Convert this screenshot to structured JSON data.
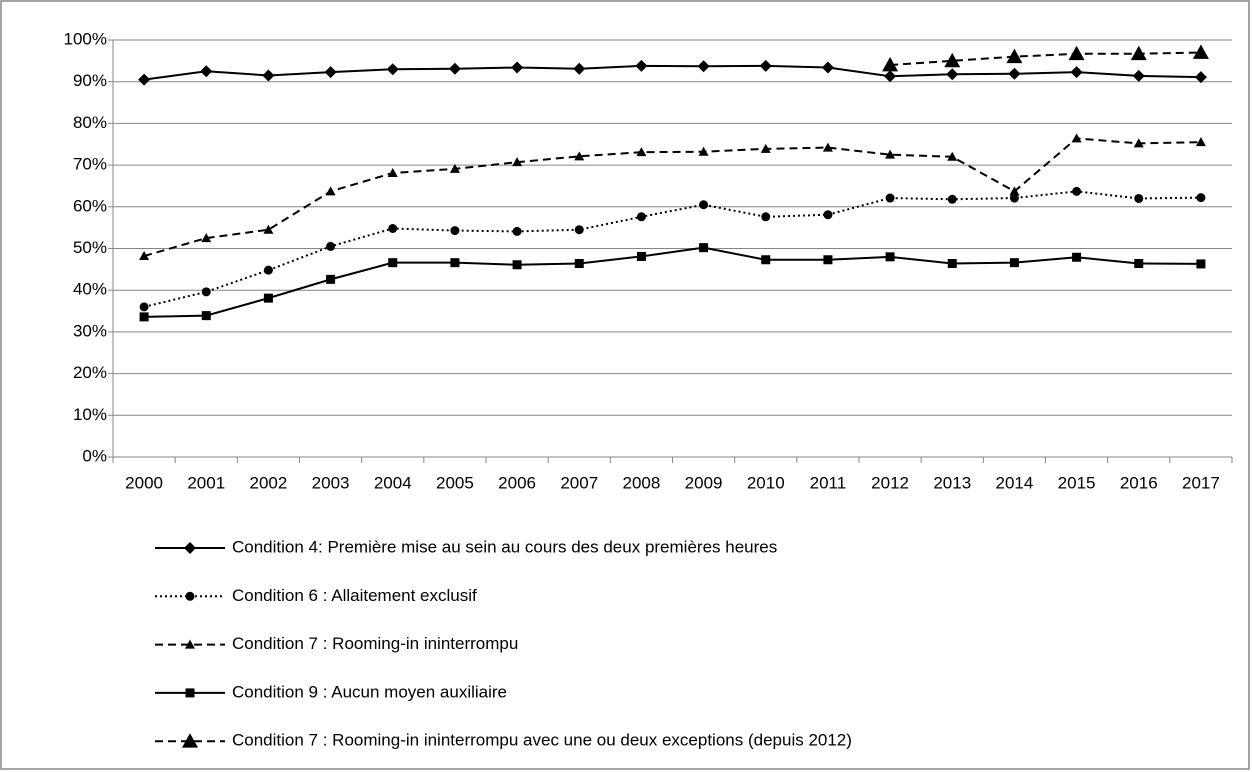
{
  "chart_data": {
    "type": "line",
    "categories": [
      "2000",
      "2001",
      "2002",
      "2003",
      "2004",
      "2005",
      "2006",
      "2007",
      "2008",
      "2009",
      "2010",
      "2011",
      "2012",
      "2013",
      "2014",
      "2015",
      "2016",
      "2017"
    ],
    "ylim": [
      0,
      100
    ],
    "yticks": [
      {
        "value": 0,
        "label": "0%"
      },
      {
        "value": 10,
        "label": "10%"
      },
      {
        "value": 20,
        "label": "20%"
      },
      {
        "value": 30,
        "label": "30%"
      },
      {
        "value": 40,
        "label": "40%"
      },
      {
        "value": 50,
        "label": "50%"
      },
      {
        "value": 60,
        "label": "60%"
      },
      {
        "value": 70,
        "label": "70%"
      },
      {
        "value": 80,
        "label": "80%"
      },
      {
        "value": 90,
        "label": "90%"
      },
      {
        "value": 100,
        "label": "100%"
      }
    ],
    "grid": true,
    "legend": "bottom",
    "series": [
      {
        "name": "Condition 4: Première mise au sein au cours des deux premières heures",
        "color": "#000000",
        "dash": "solid",
        "marker": "diamond",
        "marker_size": 6,
        "values": [
          90.5,
          92.5,
          91.5,
          92.3,
          93.0,
          93.1,
          93.4,
          93.1,
          93.8,
          93.7,
          93.8,
          93.4,
          91.3,
          91.8,
          91.9,
          92.3,
          91.4,
          91.1
        ]
      },
      {
        "name": "Condition 6 : Allaitement exclusif",
        "color": "#000000",
        "dash": "dotted",
        "marker": "circle",
        "marker_size": 4.5,
        "values": [
          36.0,
          39.6,
          44.8,
          50.5,
          54.8,
          54.3,
          54.1,
          54.5,
          57.6,
          60.5,
          57.6,
          58.1,
          62.1,
          61.8,
          62.1,
          63.7,
          62.0,
          62.2
        ]
      },
      {
        "name": "Condition 7 : Rooming-in ininterrompu",
        "color": "#000000",
        "dash": "dashed",
        "marker": "triangle",
        "marker_size": 5,
        "values": [
          48.2,
          52.5,
          54.5,
          63.7,
          68.1,
          69.1,
          70.7,
          72.1,
          73.1,
          73.2,
          73.9,
          74.2,
          72.5,
          72.0,
          63.7,
          76.4,
          75.2,
          75.5
        ]
      },
      {
        "name": "Condition 9 : Aucun moyen auxiliaire",
        "color": "#000000",
        "dash": "solid",
        "marker": "square",
        "marker_size": 4.5,
        "values": [
          33.6,
          33.9,
          38.1,
          42.6,
          46.6,
          46.6,
          46.1,
          46.4,
          48.1,
          50.2,
          47.3,
          47.3,
          48.0,
          46.4,
          46.6,
          47.9,
          46.4,
          46.3
        ]
      },
      {
        "name": "Condition 7 : Rooming-in ininterrompu avec une ou deux exceptions (depuis 2012)",
        "color": "#000000",
        "dash": "dashed",
        "marker": "triangle",
        "marker_size": 8,
        "values": [
          null,
          null,
          null,
          null,
          null,
          null,
          null,
          null,
          null,
          null,
          null,
          null,
          94.0,
          95.0,
          96.0,
          96.7,
          96.7,
          97.0
        ]
      }
    ]
  }
}
